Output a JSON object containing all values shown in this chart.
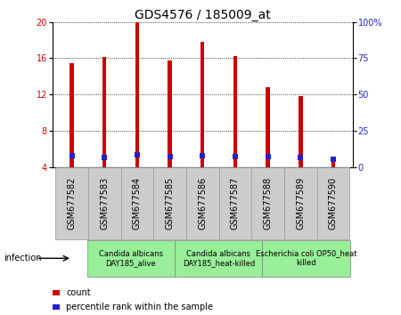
{
  "title": "GDS4576 / 185009_at",
  "samples": [
    "GSM677582",
    "GSM677583",
    "GSM677584",
    "GSM677585",
    "GSM677586",
    "GSM677587",
    "GSM677588",
    "GSM677589",
    "GSM677590"
  ],
  "counts": [
    15.5,
    16.1,
    20.0,
    15.8,
    17.8,
    16.2,
    12.8,
    11.8,
    5.0
  ],
  "percentile_ranks": [
    8.0,
    6.8,
    8.2,
    7.0,
    7.6,
    7.0,
    7.0,
    6.8,
    5.1
  ],
  "ylim_left": [
    4,
    20
  ],
  "ylim_right": [
    0,
    100
  ],
  "yticks_left": [
    4,
    8,
    12,
    16,
    20
  ],
  "yticks_right": [
    0,
    25,
    50,
    75,
    100
  ],
  "ytick_labels_right": [
    "0",
    "25",
    "50",
    "75",
    "100%"
  ],
  "bar_color": "#cc0000",
  "dot_color": "#2222cc",
  "bar_width": 0.12,
  "groups": [
    {
      "label": "Candida albicans\nDAY185_alive",
      "start": 0,
      "end": 3,
      "color": "#99ee99"
    },
    {
      "label": "Candida albicans\nDAY185_heat-killed",
      "start": 3,
      "end": 6,
      "color": "#99ee99"
    },
    {
      "label": "Escherichia coli OP50_heat\nkilled",
      "start": 6,
      "end": 9,
      "color": "#99ee99"
    }
  ],
  "infection_label": "infection",
  "legend_items": [
    {
      "color": "#cc0000",
      "label": "count"
    },
    {
      "color": "#2222cc",
      "label": "percentile rank within the sample"
    }
  ],
  "title_fontsize": 10,
  "tick_fontsize": 7,
  "label_fontsize": 7,
  "group_label_fontsize": 6,
  "sample_label_fontsize": 7,
  "grid_color": "#000000",
  "grid_lw": 0.6,
  "bg_color": "#ffffff",
  "sample_box_color": "#cccccc",
  "sample_box_edge": "#999999"
}
